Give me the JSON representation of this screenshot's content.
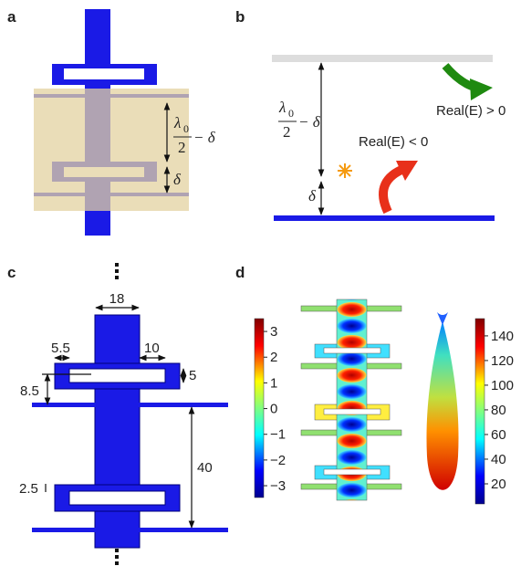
{
  "panel_a": {
    "label": "a",
    "gap_label": {
      "numerator": "λ",
      "subscript": "0",
      "denominator": "2",
      "tail": "− δ"
    },
    "offset_label": "δ"
  },
  "panel_b": {
    "label": "b",
    "gap_label": {
      "numerator": "λ",
      "subscript": "0",
      "denominator": "2",
      "tail": "− δ"
    },
    "offset_label": "δ",
    "upper_label": "Real(E) > 0",
    "lower_label": "Real(E) < 0"
  },
  "panel_c": {
    "label": "c",
    "dimensions": [
      18,
      5.5,
      10,
      5,
      8.5,
      40,
      2.5
    ]
  },
  "panel_d": {
    "label": "d",
    "colorbar_left": {
      "lim": [
        -3.46,
        3.5
      ],
      "ticks": [
        3,
        2,
        1,
        0,
        {
          "value": -1,
          "label": "−1"
        },
        {
          "value": -2,
          "label": "−2"
        },
        {
          "value": -3,
          "label": "−3"
        }
      ]
    },
    "colorbar_right": {
      "lim": [
        3.7,
        154
      ],
      "ticks": [
        140,
        120,
        100,
        80,
        60,
        40,
        20
      ]
    }
  }
}
